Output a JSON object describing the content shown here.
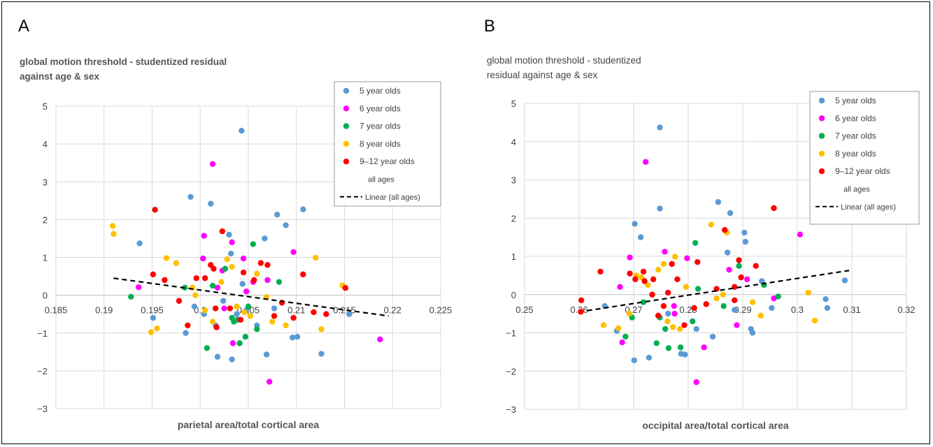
{
  "panels": [
    {
      "letter": "A",
      "y_title": "global motion threshold - studentized residual against age & sex",
      "y_title_line1": "global motion threshold - studentized residual",
      "y_title_line2": "against age & sex",
      "legend": [
        "5 year olds",
        "6 year olds",
        "7 year olds",
        "8 year olds",
        "9–12 year olds",
        "all ages",
        "Linear (all ages)"
      ]
    },
    {
      "letter": "B",
      "y_title_line1": "global motion threshold - studentized",
      "y_title_line2": "residual against age & sex",
      "legend": [
        "5 year olds",
        "6 year olds",
        "7 year olds",
        "8 year olds",
        "9–12 year olds",
        "all ages",
        "Linear (all ages)"
      ]
    }
  ],
  "colors": {
    "5 year olds": "#5b9bd5",
    "6 year olds": "#ff00ff",
    "7 year olds": "#00b050",
    "8 year olds": "#ffc000",
    "9–12 year olds": "#ff0000",
    "trend": "#000000",
    "grid": "#d9d9d9"
  },
  "chart_data": [
    {
      "type": "scatter",
      "title": "",
      "xlabel": "parietal area/total cortical area",
      "ylabel": "global motion threshold - studentized residual against age & sex",
      "xlim": [
        0.185,
        0.225
      ],
      "ylim": [
        -3,
        5
      ],
      "xticks": [
        "0.185",
        "0.19",
        "0.195",
        "0.2",
        "0.205",
        "0.21",
        "0.215",
        "0.22",
        "0.225"
      ],
      "yticks": [
        "5",
        "4",
        "3",
        "2",
        "1",
        "0",
        "−1",
        "−2",
        "−3"
      ],
      "grid": true,
      "legend_position": "top-right",
      "series": [
        {
          "name": "5 year olds",
          "points": [
            [
              0.1937,
              1.37
            ],
            [
              0.1951,
              -0.6
            ],
            [
              0.1985,
              -1.0
            ],
            [
              0.199,
              2.6
            ],
            [
              0.1994,
              -0.3
            ],
            [
              0.2004,
              -0.5
            ],
            [
              0.2011,
              2.42
            ],
            [
              0.2018,
              -1.63
            ],
            [
              0.2024,
              -0.15
            ],
            [
              0.203,
              1.6
            ],
            [
              0.2032,
              1.1
            ],
            [
              0.2033,
              -1.7
            ],
            [
              0.2038,
              -0.5
            ],
            [
              0.2043,
              4.35
            ],
            [
              0.2048,
              -0.4
            ],
            [
              0.2059,
              -0.8
            ],
            [
              0.2067,
              1.5
            ],
            [
              0.2069,
              -1.57
            ],
            [
              0.2077,
              -0.35
            ],
            [
              0.208,
              2.13
            ],
            [
              0.2089,
              1.85
            ],
            [
              0.2096,
              -1.12
            ],
            [
              0.2101,
              -1.1
            ],
            [
              0.2107,
              2.27
            ],
            [
              0.2126,
              -1.55
            ],
            [
              0.2155,
              -0.5
            ],
            [
              0.2044,
              0.3
            ],
            [
              0.2016,
              -0.8
            ]
          ]
        },
        {
          "name": "6 year olds",
          "points": [
            [
              0.1936,
              0.21
            ],
            [
              0.2003,
              0.97
            ],
            [
              0.2004,
              1.57
            ],
            [
              0.2013,
              3.47
            ],
            [
              0.2018,
              0.2
            ],
            [
              0.2023,
              0.65
            ],
            [
              0.2033,
              1.4
            ],
            [
              0.2034,
              -1.27
            ],
            [
              0.2045,
              0.97
            ],
            [
              0.2048,
              0.1
            ],
            [
              0.2055,
              0.35
            ],
            [
              0.207,
              0.4
            ],
            [
              0.2072,
              -2.29
            ],
            [
              0.2097,
              1.14
            ],
            [
              0.2187,
              -1.17
            ],
            [
              0.2025,
              -0.35
            ]
          ]
        },
        {
          "name": "7 year olds",
          "points": [
            [
              0.1928,
              -0.04
            ],
            [
              0.1984,
              0.2
            ],
            [
              0.2007,
              -1.4
            ],
            [
              0.2026,
              0.7
            ],
            [
              0.2033,
              -0.6
            ],
            [
              0.2035,
              -0.7
            ],
            [
              0.2039,
              -0.65
            ],
            [
              0.2041,
              -1.27
            ],
            [
              0.2047,
              -1.1
            ],
            [
              0.2055,
              1.35
            ],
            [
              0.2059,
              -0.9
            ],
            [
              0.2082,
              0.35
            ],
            [
              0.2013,
              0.25
            ],
            [
              0.205,
              -0.3
            ]
          ]
        },
        {
          "name": "8 year olds",
          "points": [
            [
              0.1909,
              1.83
            ],
            [
              0.191,
              1.62
            ],
            [
              0.1949,
              -0.98
            ],
            [
              0.1955,
              -0.88
            ],
            [
              0.1965,
              0.98
            ],
            [
              0.1975,
              0.85
            ],
            [
              0.1992,
              0.2
            ],
            [
              0.2005,
              -0.4
            ],
            [
              0.2013,
              -0.7
            ],
            [
              0.2022,
              0.35
            ],
            [
              0.2028,
              0.95
            ],
            [
              0.2033,
              0.75
            ],
            [
              0.2038,
              -0.3
            ],
            [
              0.2046,
              -0.45
            ],
            [
              0.2052,
              -0.55
            ],
            [
              0.2059,
              0.57
            ],
            [
              0.2069,
              -0.05
            ],
            [
              0.2075,
              -0.7
            ],
            [
              0.2089,
              -0.8
            ],
            [
              0.212,
              0.99
            ],
            [
              0.2126,
              -0.9
            ],
            [
              0.2148,
              0.26
            ],
            [
              0.1995,
              0.0
            ]
          ]
        },
        {
          "name": "9–12 year olds",
          "points": [
            [
              0.1951,
              0.55
            ],
            [
              0.1953,
              2.26
            ],
            [
              0.1963,
              0.4
            ],
            [
              0.1978,
              -0.15
            ],
            [
              0.1987,
              -0.8
            ],
            [
              0.1996,
              0.45
            ],
            [
              0.2005,
              0.45
            ],
            [
              0.2011,
              0.8
            ],
            [
              0.2014,
              0.7
            ],
            [
              0.2016,
              -0.35
            ],
            [
              0.2023,
              1.69
            ],
            [
              0.2031,
              -0.35
            ],
            [
              0.2045,
              0.6
            ],
            [
              0.2056,
              0.4
            ],
            [
              0.2063,
              0.85
            ],
            [
              0.207,
              0.8
            ],
            [
              0.2077,
              -0.55
            ],
            [
              0.2085,
              -0.2
            ],
            [
              0.2097,
              -0.6
            ],
            [
              0.2107,
              0.55
            ],
            [
              0.2118,
              -0.45
            ],
            [
              0.2131,
              -0.5
            ],
            [
              0.2151,
              0.19
            ],
            [
              0.2042,
              -0.65
            ],
            [
              0.2017,
              -0.85
            ]
          ]
        }
      ],
      "trendline": {
        "name": "Linear (all ages)",
        "x": [
          0.191,
          0.2196
        ],
        "y": [
          0.45,
          -0.55
        ]
      }
    },
    {
      "type": "scatter",
      "title": "",
      "xlabel": "occipital area/total cortical area",
      "ylabel": "global motion threshold - studentized residual against age & sex",
      "xlim": [
        0.25,
        0.32
      ],
      "ylim": [
        -3,
        5
      ],
      "xticks": [
        "0.25",
        "0.26",
        "0.27",
        "0.28",
        "0.29",
        "0.3",
        "0.31",
        "0.32"
      ],
      "yticks": [
        "5",
        "4",
        "3",
        "2",
        "1",
        "0",
        "−1",
        "−2",
        "−3"
      ],
      "grid": true,
      "legend_position": "top-right",
      "series": [
        {
          "name": "5 year olds",
          "points": [
            [
              0.2647,
              -0.3
            ],
            [
              0.2669,
              -0.95
            ],
            [
              0.2702,
              1.85
            ],
            [
              0.2701,
              -1.72
            ],
            [
              0.2713,
              1.5
            ],
            [
              0.2728,
              -1.65
            ],
            [
              0.2748,
              2.25
            ],
            [
              0.2748,
              4.37
            ],
            [
              0.2763,
              -0.5
            ],
            [
              0.2787,
              -1.55
            ],
            [
              0.2794,
              -1.57
            ],
            [
              0.2815,
              -0.9
            ],
            [
              0.2845,
              -1.1
            ],
            [
              0.2855,
              2.42
            ],
            [
              0.2872,
              1.1
            ],
            [
              0.2877,
              2.13
            ],
            [
              0.2903,
              1.62
            ],
            [
              0.2905,
              1.38
            ],
            [
              0.2915,
              -0.9
            ],
            [
              0.2935,
              0.35
            ],
            [
              0.2953,
              -0.35
            ],
            [
              0.3055,
              -0.35
            ],
            [
              0.3052,
              -0.12
            ],
            [
              0.3087,
              0.37
            ],
            [
              0.2885,
              -0.4
            ],
            [
              0.2918,
              -1.0
            ]
          ]
        },
        {
          "name": "6 year olds",
          "points": [
            [
              0.2675,
              0.2
            ],
            [
              0.2679,
              -1.25
            ],
            [
              0.2693,
              0.97
            ],
            [
              0.2722,
              3.47
            ],
            [
              0.2757,
              1.12
            ],
            [
              0.2775,
              -0.5
            ],
            [
              0.2798,
              0.95
            ],
            [
              0.2815,
              -2.29
            ],
            [
              0.2829,
              -1.38
            ],
            [
              0.2875,
              0.65
            ],
            [
              0.2889,
              -0.8
            ],
            [
              0.2908,
              0.4
            ],
            [
              0.2957,
              -0.1
            ],
            [
              0.3005,
              1.57
            ],
            [
              0.2774,
              -0.3
            ]
          ]
        },
        {
          "name": "7 year olds",
          "points": [
            [
              0.2685,
              -1.1
            ],
            [
              0.2697,
              -0.6
            ],
            [
              0.2718,
              -0.2
            ],
            [
              0.2742,
              -1.27
            ],
            [
              0.2758,
              -0.9
            ],
            [
              0.2764,
              -1.4
            ],
            [
              0.2786,
              -1.38
            ],
            [
              0.2808,
              -0.7
            ],
            [
              0.2813,
              1.35
            ],
            [
              0.2818,
              0.15
            ],
            [
              0.2865,
              -0.3
            ],
            [
              0.2893,
              0.75
            ],
            [
              0.2939,
              0.25
            ],
            [
              0.2965,
              -0.05
            ],
            [
              0.2748,
              -0.6
            ]
          ]
        },
        {
          "name": "8 year olds",
          "points": [
            [
              0.2645,
              -0.8
            ],
            [
              0.2672,
              -0.88
            ],
            [
              0.2692,
              -0.5
            ],
            [
              0.2705,
              0.5
            ],
            [
              0.2714,
              0.45
            ],
            [
              0.2726,
              0.25
            ],
            [
              0.2745,
              0.65
            ],
            [
              0.2755,
              0.8
            ],
            [
              0.2762,
              -0.7
            ],
            [
              0.2772,
              -0.85
            ],
            [
              0.2776,
              0.99
            ],
            [
              0.2796,
              0.2
            ],
            [
              0.2842,
              1.83
            ],
            [
              0.2852,
              -0.1
            ],
            [
              0.2864,
              0.0
            ],
            [
              0.2871,
              1.62
            ],
            [
              0.2918,
              -0.2
            ],
            [
              0.2933,
              -0.55
            ],
            [
              0.302,
              0.05
            ],
            [
              0.3032,
              -0.68
            ],
            [
              0.2785,
              -0.9
            ]
          ]
        },
        {
          "name": "9–12 year olds",
          "points": [
            [
              0.2604,
              -0.15
            ],
            [
              0.2603,
              -0.45
            ],
            [
              0.2639,
              0.6
            ],
            [
              0.2693,
              0.55
            ],
            [
              0.2703,
              0.4
            ],
            [
              0.2718,
              0.6
            ],
            [
              0.272,
              0.35
            ],
            [
              0.2734,
              0.0
            ],
            [
              0.2736,
              0.4
            ],
            [
              0.2745,
              -0.55
            ],
            [
              0.2755,
              -0.3
            ],
            [
              0.2763,
              0.05
            ],
            [
              0.277,
              0.8
            ],
            [
              0.278,
              0.4
            ],
            [
              0.2793,
              -0.8
            ],
            [
              0.2811,
              -0.35
            ],
            [
              0.2817,
              0.85
            ],
            [
              0.2833,
              -0.25
            ],
            [
              0.2852,
              0.15
            ],
            [
              0.2867,
              1.69
            ],
            [
              0.2885,
              -0.15
            ],
            [
              0.2893,
              0.9
            ],
            [
              0.2897,
              0.45
            ],
            [
              0.2924,
              0.75
            ],
            [
              0.2957,
              2.26
            ],
            [
              0.2885,
              0.2
            ]
          ]
        }
      ],
      "trendline": {
        "name": "Linear (all ages)",
        "x": [
          0.2615,
          0.3095
        ],
        "y": [
          -0.42,
          0.63
        ]
      }
    }
  ]
}
